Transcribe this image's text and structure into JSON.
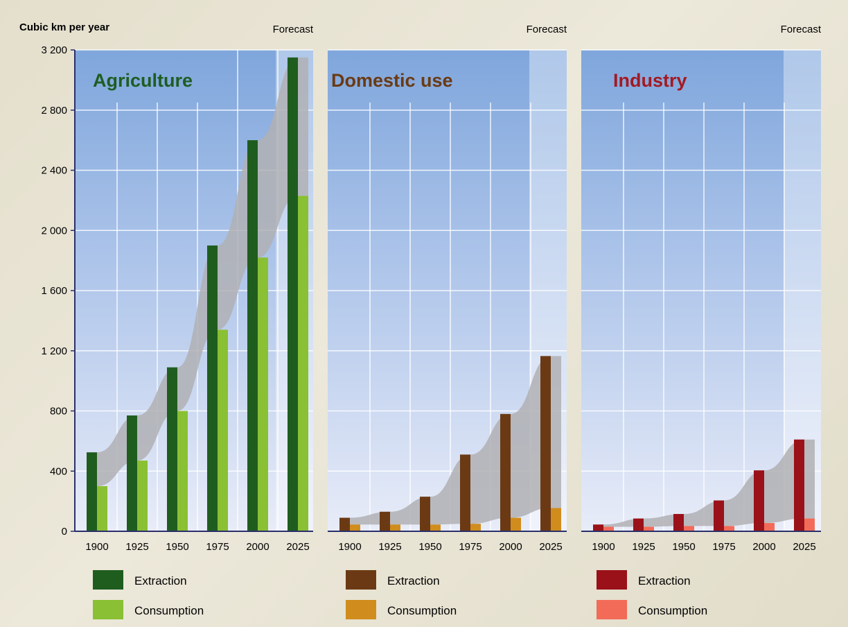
{
  "chart_data": {
    "type": "bar",
    "y_axis_label": "Cubic km per year",
    "forecast_label": "Forecast",
    "ylim": [
      0,
      3200
    ],
    "yticks": [
      0,
      400,
      800,
      1200,
      1600,
      2000,
      2400,
      2800,
      3200
    ],
    "ytick_labels": [
      "0",
      "400",
      "800",
      "1 200",
      "1 600",
      "2 000",
      "2 400",
      "2 800",
      "3 200"
    ],
    "categories": [
      "1900",
      "1925",
      "1950",
      "1975",
      "2000",
      "2025"
    ],
    "forecast_categories": [
      "2025"
    ],
    "grid": true,
    "panels": [
      {
        "title": "Agriculture",
        "title_color": "#1e5d22",
        "series": [
          {
            "name": "Extraction",
            "color": "#1f5d1f",
            "values": [
              525,
              770,
              1090,
              1900,
              2600,
              3150
            ]
          },
          {
            "name": "Consumption",
            "color": "#8ac033",
            "values": [
              300,
              470,
              800,
              1340,
              1820,
              2230
            ]
          }
        ]
      },
      {
        "title": "Domestic use",
        "title_color": "#6a3a14",
        "series": [
          {
            "name": "Extraction",
            "color": "#6b3a14",
            "values": [
              90,
              130,
              230,
              510,
              780,
              1165
            ]
          },
          {
            "name": "Consumption",
            "color": "#d08d1d",
            "values": [
              45,
              45,
              45,
              50,
              90,
              155
            ]
          }
        ]
      },
      {
        "title": "Industry",
        "title_color": "#a31a22",
        "series": [
          {
            "name": "Extraction",
            "color": "#9a1119",
            "values": [
              45,
              85,
              115,
              205,
              405,
              610
            ]
          },
          {
            "name": "Consumption",
            "color": "#f26b58",
            "values": [
              30,
              30,
              35,
              35,
              55,
              85
            ]
          }
        ]
      }
    ],
    "band_color": "#b0b0b4"
  }
}
